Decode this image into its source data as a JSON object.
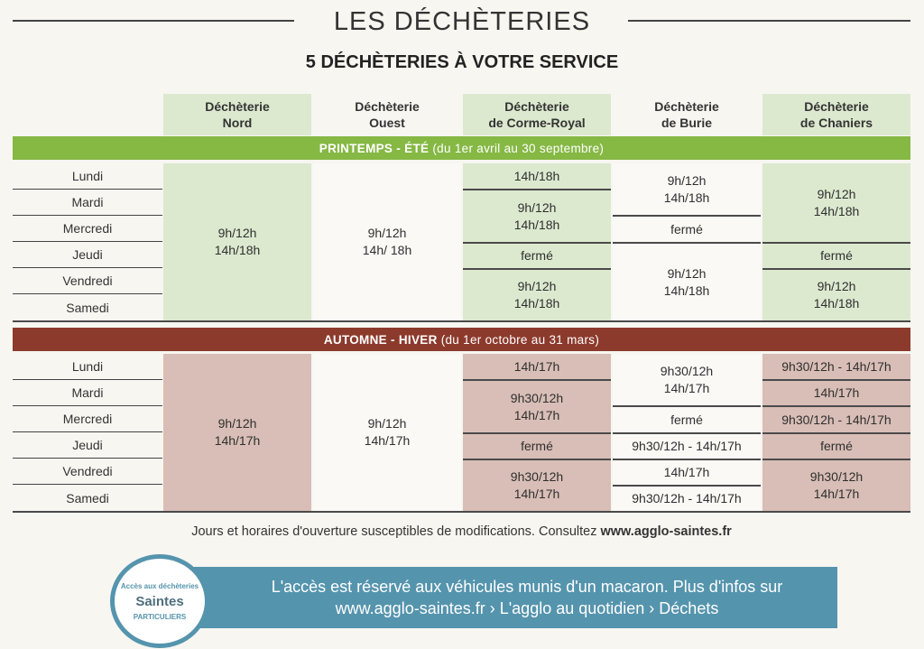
{
  "header": {
    "title": "LES DÉCHÈTERIES",
    "subtitle": "5 DÉCHÈTERIES À VOTRE SERVICE"
  },
  "columns": [
    {
      "line1": "Déchèterie",
      "line2": "Nord"
    },
    {
      "line1": "Déchèterie",
      "line2": "Ouest"
    },
    {
      "line1": "Déchèterie",
      "line2": "de Corme-Royal"
    },
    {
      "line1": "Déchèterie",
      "line2": "de Burie"
    },
    {
      "line1": "Déchèterie",
      "line2": "de Chaniers"
    }
  ],
  "days": [
    "Lundi",
    "Mardi",
    "Mercredi",
    "Jeudi",
    "Vendredi",
    "Samedi"
  ],
  "spring": {
    "label_main": "PRINTEMPS - ÉTÉ",
    "label_range": "(du 1er avril au 30 septembre)",
    "nord": [
      "9h/12h",
      "14h/18h"
    ],
    "ouest": [
      "9h/12h",
      "14h/ 18h"
    ],
    "corme": {
      "lundi": "14h/18h",
      "mardi_mercredi": [
        "9h/12h",
        "14h/18h"
      ],
      "jeudi": "fermé",
      "vendredi_samedi": [
        "9h/12h",
        "14h/18h"
      ]
    },
    "burie": {
      "lundi_mardi": [
        "9h/12h",
        "14h/18h"
      ],
      "mercredi": "fermé",
      "jeudi_samedi": [
        "9h/12h",
        "14h/18h"
      ]
    },
    "chaniers": {
      "lundi_mercredi": [
        "9h/12h",
        "14h/18h"
      ],
      "jeudi": "fermé",
      "vendredi_samedi": [
        "9h/12h",
        "14h/18h"
      ]
    }
  },
  "autumn": {
    "label_main": "AUTOMNE - HIVER",
    "label_range": "(du 1er octobre au 31 mars)",
    "nord": [
      "9h/12h",
      "14h/17h"
    ],
    "ouest": [
      "9h/12h",
      "14h/17h"
    ],
    "corme": {
      "lundi": "14h/17h",
      "mardi_mercredi": [
        "9h30/12h",
        "14h/17h"
      ],
      "jeudi": "fermé",
      "vendredi_samedi": [
        "9h30/12h",
        "14h/17h"
      ]
    },
    "burie": {
      "lundi_mardi": [
        "9h30/12h",
        "14h/17h"
      ],
      "mercredi": "fermé",
      "jeudi": "9h30/12h - 14h/17h",
      "vendredi": "14h/17h",
      "samedi": "9h30/12h - 14h/17h"
    },
    "chaniers": {
      "lundi": "9h30/12h - 14h/17h",
      "mardi": "14h/17h",
      "mercredi": "9h30/12h - 14h/17h",
      "jeudi": "fermé",
      "vendredi_samedi": [
        "9h30/12h",
        "14h/17h"
      ]
    }
  },
  "footer": {
    "note_text": "Jours et horaires d'ouverture susceptibles de modifications. Consultez",
    "note_link": "www.agglo-saintes.fr",
    "banner_line1": "L'accès est réservé aux véhicules munis d'un macaron. Plus d'infos sur",
    "banner_line2": "www.agglo-saintes.fr › L'agglo au quotidien › Déchets",
    "badge_top": "Accès aux déchèteries",
    "badge_logo": "Saintes",
    "badge_bottom": "PARTICULIERS",
    "colors": {
      "green": "#86b844",
      "red": "#8c3a2c",
      "blue": "#5594ad"
    }
  }
}
